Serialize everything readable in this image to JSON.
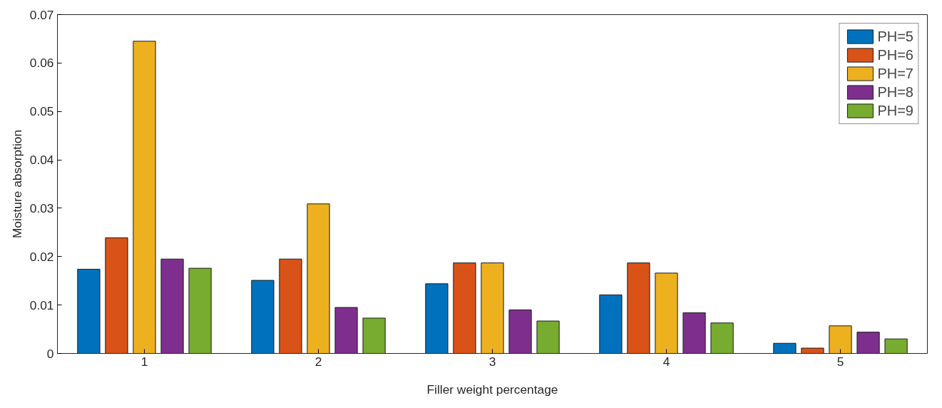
{
  "chart_data": {
    "type": "bar",
    "xlabel": "Filler weight percentage",
    "ylabel": "Moisture absorption",
    "categories": [
      "1",
      "2",
      "3",
      "4",
      "5"
    ],
    "series": [
      {
        "name": "PH=5",
        "color": "#0072bd",
        "values": [
          0.0174,
          0.0151,
          0.0144,
          0.0121,
          0.0021
        ]
      },
      {
        "name": "PH=6",
        "color": "#d95319",
        "values": [
          0.0239,
          0.0195,
          0.0187,
          0.0187,
          0.0011
        ]
      },
      {
        "name": "PH=7",
        "color": "#edb120",
        "values": [
          0.0645,
          0.0309,
          0.0187,
          0.0166,
          0.0057
        ]
      },
      {
        "name": "PH=8",
        "color": "#7e2f8e",
        "values": [
          0.0195,
          0.0095,
          0.009,
          0.0084,
          0.0044
        ]
      },
      {
        "name": "PH=9",
        "color": "#77ac30",
        "values": [
          0.0176,
          0.0073,
          0.0067,
          0.0063,
          0.003
        ]
      }
    ],
    "ylim": [
      0,
      0.07
    ],
    "yticks": [
      0,
      0.01,
      0.02,
      0.03,
      0.04,
      0.05,
      0.06,
      0.07
    ],
    "legend": "top right",
    "grid": false
  }
}
